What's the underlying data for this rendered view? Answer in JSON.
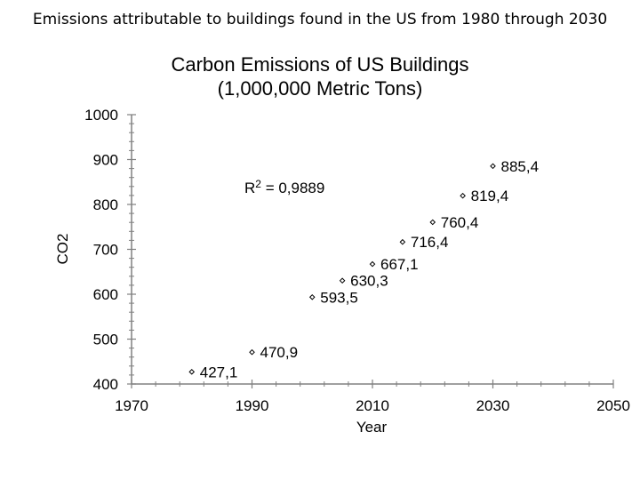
{
  "slide": {
    "title": "Emissions attributable to buildings found in the US from 1980 through 2030"
  },
  "chart_data": {
    "type": "scatter",
    "title": "Carbon Emissions of US Buildings",
    "subtitle": "(1,000,000 Metric Tons)",
    "xlabel": "Year",
    "ylabel": "CO2",
    "xlim": [
      1970,
      2050
    ],
    "ylim": [
      400,
      1000
    ],
    "xticks": [
      1970,
      1990,
      2010,
      2030,
      2050
    ],
    "yticks": [
      400,
      500,
      600,
      700,
      800,
      900,
      1000
    ],
    "grid": false,
    "annotation": {
      "label": "R",
      "sup": "2",
      "rest": " = 0,9889"
    },
    "marker_color": "#000000",
    "series": [
      {
        "x": [
          1980,
          1990,
          2000,
          2005,
          2010,
          2015,
          2020,
          2025,
          2030
        ],
        "y": [
          427.1,
          470.9,
          593.5,
          630.3,
          667.1,
          716.4,
          760.4,
          819.4,
          885.4
        ],
        "labels": [
          "427,1",
          "470,9",
          "593,5",
          "630,3",
          "667,1",
          "716,4",
          "760,4",
          "819,4",
          "885,4"
        ]
      }
    ]
  }
}
